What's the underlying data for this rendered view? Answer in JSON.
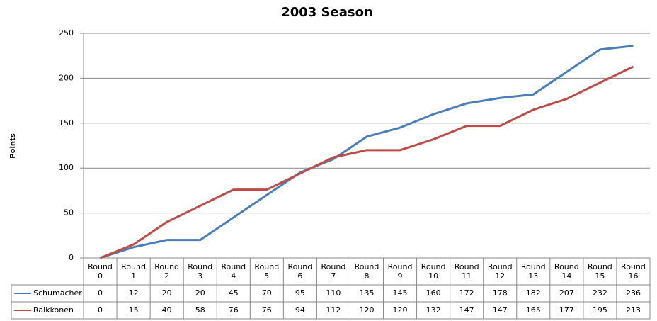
{
  "chart_data": {
    "type": "line",
    "title": "2003 Season",
    "y_label": "Points",
    "categories": [
      "Round 0",
      "Round 1",
      "Round 2",
      "Round 3",
      "Round 4",
      "Round 5",
      "Round 6",
      "Round 7",
      "Round 8",
      "Round 9",
      "Round 10",
      "Round 11",
      "Round 12",
      "Round 13",
      "Round 14",
      "Round 15",
      "Round 16"
    ],
    "series": [
      {
        "name": "Schumacher",
        "color": "#4a7ebb",
        "values": [
          0,
          12,
          20,
          20,
          45,
          70,
          95,
          110,
          135,
          145,
          160,
          172,
          178,
          182,
          207,
          232,
          236
        ]
      },
      {
        "name": "Raikkonen",
        "color": "#be4b48",
        "values": [
          0,
          15,
          40,
          58,
          76,
          76,
          94,
          112,
          120,
          120,
          132,
          147,
          147,
          165,
          177,
          195,
          213
        ]
      }
    ],
    "ylim": [
      0,
      250
    ],
    "yticks": [
      0,
      50,
      100,
      150,
      200,
      250
    ],
    "grid": true
  }
}
